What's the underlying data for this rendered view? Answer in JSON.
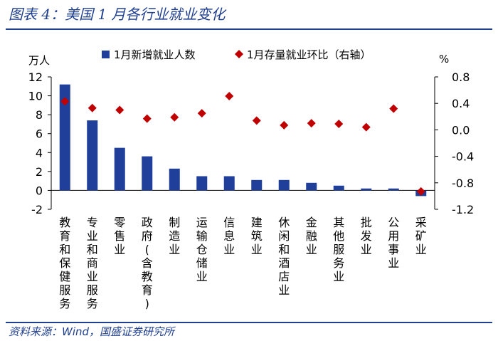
{
  "figure": {
    "title": "图表 4：美国 1 月各行业就业变化",
    "source": "资料来源：Wind，国盛证券研究所"
  },
  "colors": {
    "bar": "#1f3f9a",
    "marker": "#c00000",
    "title": "#1f3f8f"
  },
  "chart_data": {
    "type": "bar",
    "categories": [
      "教育和保健服务",
      "专业和商业服务",
      "零售业",
      "政府(含教育)",
      "制造业",
      "运输仓储业",
      "信息业",
      "建筑业",
      "休闲和酒店业",
      "金融业",
      "其他服务业",
      "批发业",
      "公用事业",
      "采矿业"
    ],
    "series": [
      {
        "name": "1月新增就业人数",
        "axis": "left",
        "type": "bar",
        "values": [
          11.2,
          7.4,
          4.5,
          3.6,
          2.3,
          1.5,
          1.5,
          1.1,
          1.1,
          0.8,
          0.5,
          0.2,
          0.2,
          -0.6
        ]
      },
      {
        "name": "1月存量就业环比（右轴）",
        "axis": "right",
        "type": "scatter",
        "marker": "diamond",
        "values": [
          0.43,
          0.33,
          0.3,
          0.17,
          0.19,
          0.25,
          0.51,
          0.14,
          0.07,
          0.1,
          0.09,
          0.04,
          0.32,
          -0.93
        ]
      }
    ],
    "left_axis": {
      "unit": "万人",
      "range": [
        -2,
        12
      ],
      "ticks": [
        -2,
        0,
        2,
        4,
        6,
        8,
        10,
        12
      ]
    },
    "right_axis": {
      "unit": "%",
      "range": [
        -1.2,
        0.8
      ],
      "ticks": [
        -1.2,
        -0.8,
        -0.4,
        0.0,
        0.4,
        0.8
      ],
      "tick_labels": [
        "-1.2",
        "-0.8",
        "-0.4",
        "0.0",
        "0.4",
        "0.8"
      ]
    },
    "legend": {
      "placement": "top",
      "entries": [
        "1月新增就业人数",
        "1月存量就业环比（右轴）"
      ]
    }
  }
}
